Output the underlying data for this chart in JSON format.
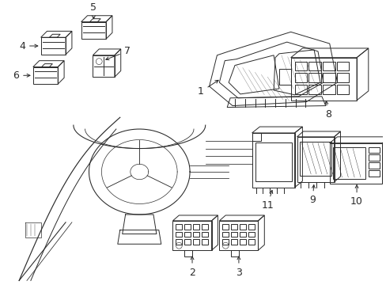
{
  "bg_color": "#ffffff",
  "line_color": "#2a2a2a",
  "figsize": [
    4.89,
    3.6
  ],
  "dpi": 100,
  "label_fontsize": 9
}
